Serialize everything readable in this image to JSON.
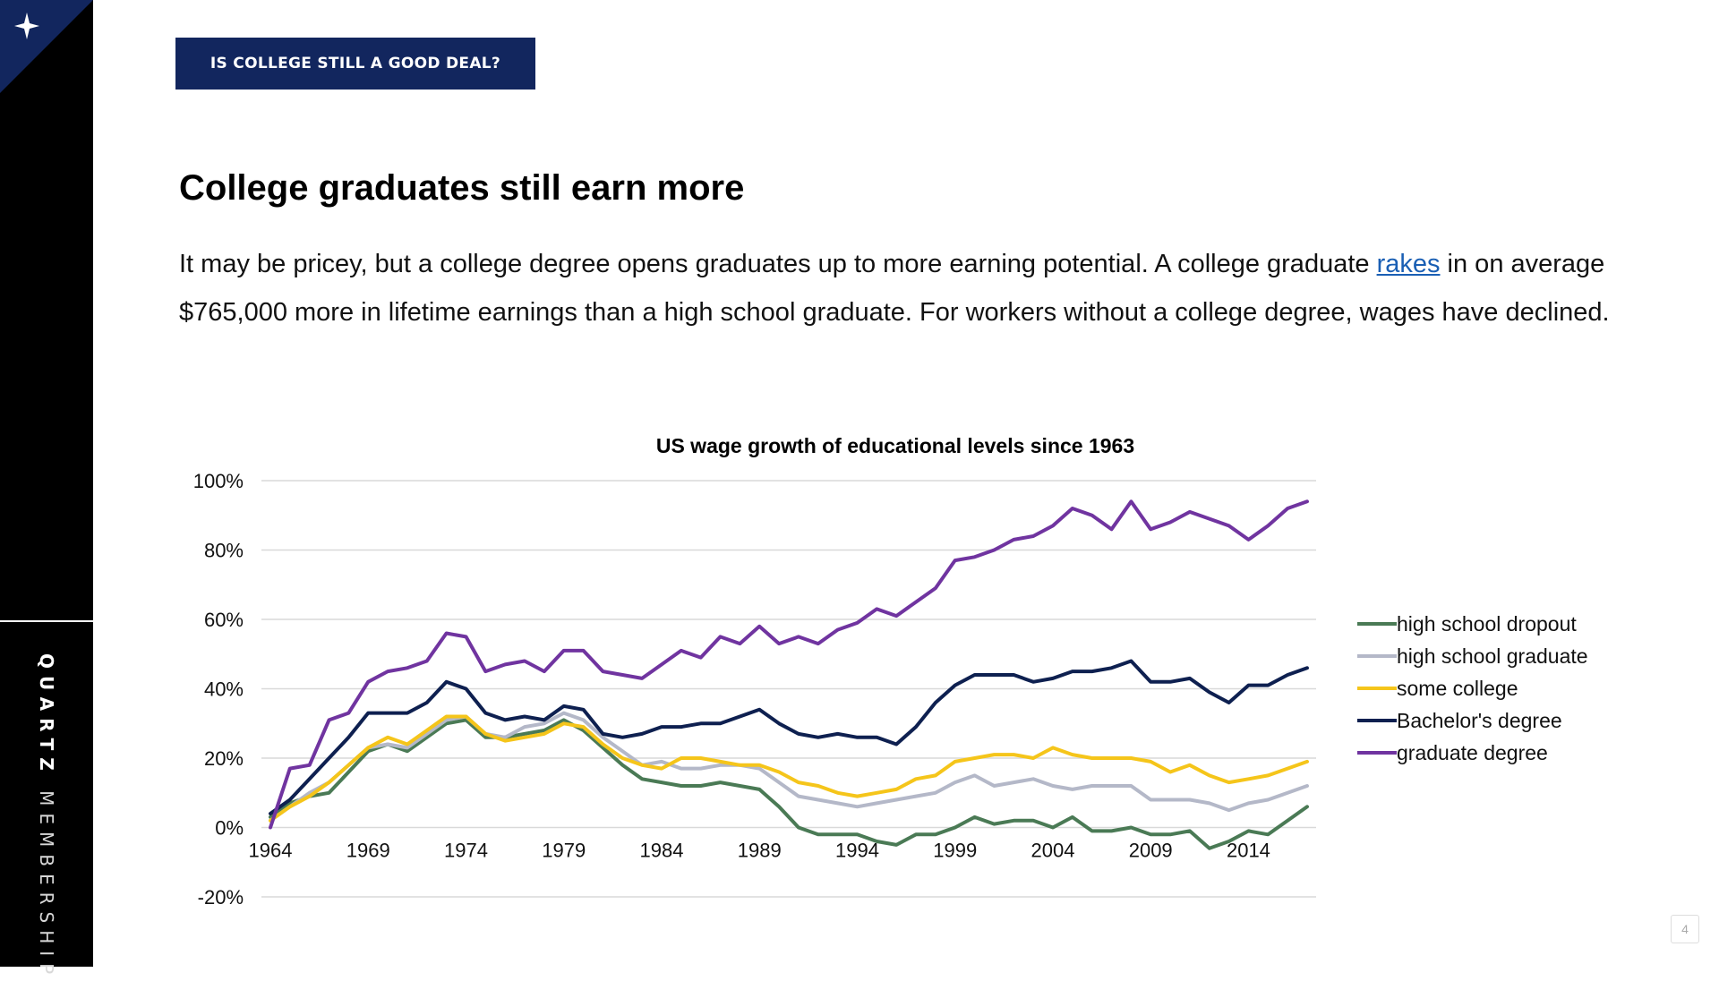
{
  "header": {
    "section_tag": "IS COLLEGE STILL A GOOD DEAL?"
  },
  "sidebar": {
    "brand_bold": "QUARTZ",
    "brand_light": "MEMBERSHIP",
    "badge_icon": "sparkle-icon"
  },
  "slide": {
    "title": "College graduates still earn more",
    "body_before_link": "It may be pricey, but a college degree opens graduates up to more earning potential. A college graduate ",
    "link_text": "rakes",
    "body_after_link": " in on average $765,000 more in lifetime earnings than a high school graduate. For workers without a college degree, wages have declined.",
    "page_number": "4"
  },
  "colors": {
    "accent_navy": "#12265e",
    "link_blue": "#1a5fb4"
  },
  "chart_data": {
    "type": "line",
    "title": "US wage growth of educational levels since 1963",
    "x": [
      1964,
      1965,
      1966,
      1967,
      1968,
      1969,
      1970,
      1971,
      1972,
      1973,
      1974,
      1975,
      1976,
      1977,
      1978,
      1979,
      1980,
      1981,
      1982,
      1983,
      1984,
      1985,
      1986,
      1987,
      1988,
      1989,
      1990,
      1991,
      1992,
      1993,
      1994,
      1995,
      1996,
      1997,
      1998,
      1999,
      2000,
      2001,
      2002,
      2003,
      2004,
      2005,
      2006,
      2007,
      2008,
      2009,
      2010,
      2011,
      2012,
      2013,
      2014,
      2015,
      2016,
      2017
    ],
    "xticks": [
      1964,
      1969,
      1974,
      1979,
      1984,
      1989,
      1994,
      1999,
      2004,
      2009,
      2014
    ],
    "xtick_labels": [
      "1964",
      "1969",
      "1974",
      "1979",
      "1984",
      "1989",
      "1994",
      "1999",
      "2004",
      "2009",
      "2014"
    ],
    "yticks": [
      -20,
      0,
      20,
      40,
      60,
      80,
      100
    ],
    "ytick_labels": [
      "-20%",
      "0%",
      "20%",
      "40%",
      "60%",
      "80%",
      "100%"
    ],
    "ylim": [
      -20,
      100
    ],
    "grid": true,
    "legend_position": "right",
    "series": [
      {
        "name": "high school dropout",
        "color": "#4a7a55",
        "values": [
          3,
          7,
          9,
          10,
          16,
          22,
          24,
          22,
          26,
          30,
          31,
          26,
          26,
          27,
          28,
          31,
          28,
          23,
          18,
          14,
          13,
          12,
          12,
          13,
          12,
          11,
          6,
          0,
          -2,
          -2,
          -2,
          -4,
          -5,
          -2,
          -2,
          0,
          3,
          1,
          2,
          2,
          0,
          3,
          -1,
          -1,
          0,
          -2,
          -2,
          -1,
          -6,
          -4,
          -1,
          -2,
          2,
          6
        ]
      },
      {
        "name": "high school graduate",
        "color": "#b4b8c8",
        "values": [
          2,
          6,
          10,
          13,
          18,
          23,
          24,
          23,
          27,
          31,
          32,
          27,
          26,
          29,
          30,
          33,
          31,
          26,
          22,
          18,
          19,
          17,
          17,
          18,
          18,
          17,
          13,
          9,
          8,
          7,
          6,
          7,
          8,
          9,
          10,
          13,
          15,
          12,
          13,
          14,
          12,
          11,
          12,
          12,
          12,
          8,
          8,
          8,
          7,
          5,
          7,
          8,
          10,
          12
        ]
      },
      {
        "name": "some college",
        "color": "#f5c51a",
        "values": [
          2,
          6,
          9,
          13,
          18,
          23,
          26,
          24,
          28,
          32,
          32,
          27,
          25,
          26,
          27,
          30,
          29,
          24,
          20,
          18,
          17,
          20,
          20,
          19,
          18,
          18,
          16,
          13,
          12,
          10,
          9,
          10,
          11,
          14,
          15,
          19,
          20,
          21,
          21,
          20,
          23,
          21,
          20,
          20,
          20,
          19,
          16,
          18,
          15,
          13,
          14,
          15,
          17,
          19
        ]
      },
      {
        "name": "Bachelor's degree",
        "color": "#0e2050",
        "values": [
          4,
          8,
          14,
          20,
          26,
          33,
          33,
          33,
          36,
          42,
          40,
          33,
          31,
          32,
          31,
          35,
          34,
          27,
          26,
          27,
          29,
          29,
          30,
          30,
          32,
          34,
          30,
          27,
          26,
          27,
          26,
          26,
          24,
          29,
          36,
          41,
          44,
          44,
          44,
          42,
          43,
          45,
          45,
          46,
          48,
          42,
          42,
          43,
          39,
          36,
          41,
          41,
          44,
          46
        ]
      },
      {
        "name": "graduate degree",
        "color": "#7034a0",
        "values": [
          0,
          17,
          18,
          31,
          33,
          42,
          45,
          46,
          48,
          56,
          55,
          45,
          47,
          48,
          45,
          51,
          51,
          45,
          44,
          43,
          47,
          51,
          49,
          55,
          53,
          58,
          53,
          55,
          53,
          57,
          59,
          63,
          61,
          65,
          69,
          77,
          78,
          80,
          83,
          84,
          87,
          92,
          90,
          86,
          94,
          86,
          88,
          91,
          89,
          87,
          83,
          87,
          92,
          94
        ]
      }
    ]
  }
}
